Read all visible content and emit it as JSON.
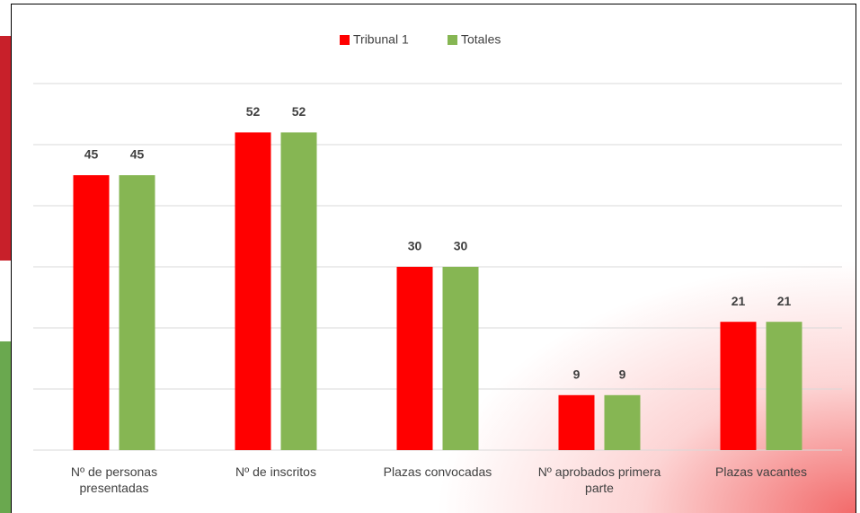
{
  "chart_data": {
    "type": "bar",
    "categories": [
      "Nº de personas presentadas",
      "Nº de inscritos",
      "Plazas convocadas",
      "Nº aprobados primera parte",
      "Plazas vacantes"
    ],
    "series": [
      {
        "name": "Tribunal 1",
        "color": "#ff0000",
        "values": [
          45,
          52,
          30,
          9,
          21
        ]
      },
      {
        "name": "Totales",
        "color": "#86b653",
        "values": [
          45,
          52,
          30,
          9,
          21
        ]
      }
    ],
    "ylim": [
      0,
      60
    ],
    "yticks": [
      0,
      10,
      20,
      30,
      40,
      50,
      60
    ],
    "grid": true,
    "legend": "top"
  }
}
